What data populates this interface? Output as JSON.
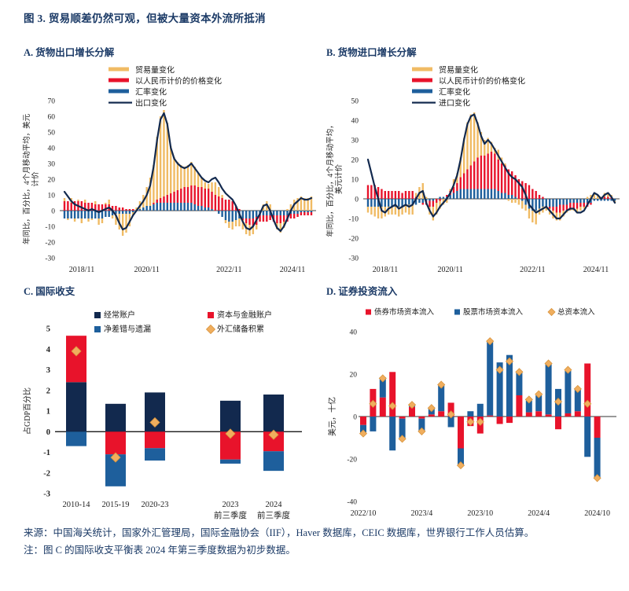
{
  "figure": {
    "title": "图 3. 贸易顺差仍然可观，但被大量资本外流所抵消",
    "source_note": "来源：中国海关统计，国家外汇管理局，国际金融协会（IIF），Haver 数据库，CEIC 数据库，世界银行工作人员估算。",
    "footnote": "注：图 C 的国际收支平衡表 2024 年第三季度数据为初步数据。"
  },
  "colors": {
    "navy": "#12294e",
    "red": "#e8132b",
    "blue": "#1e5f9c",
    "yellow": "#f0bb64",
    "diamond": "#f0ae5e",
    "diamond_edge": "#d8933c",
    "title": "#1b3a66",
    "axis_text": "#222222"
  },
  "chart_data": [
    {
      "id": "A",
      "type": "bar",
      "subtype": "stacked-decomposition-with-line",
      "title": "A. 货物出口增长分解",
      "ylabel_lines": [
        "年同比，百分比，4个月移动平均，美元",
        "计价"
      ],
      "ylim": [
        -30,
        70
      ],
      "ytick_step": 10,
      "x_range": {
        "start": "2018/11",
        "end": "2024/11",
        "months": 73
      },
      "x_ticks": [
        {
          "i": 0,
          "label": "2018/11"
        },
        {
          "i": 24,
          "label": "2020/11"
        },
        {
          "i": 48,
          "label": "2022/11"
        },
        {
          "i": 72,
          "label": "2024/11"
        }
      ],
      "legend": [
        "贸易量变化",
        "以人民币计价的价格变化",
        "汇率变化",
        "出口变化"
      ],
      "series": {
        "volume": [
          2,
          -1,
          3,
          -2,
          1,
          -3,
          2,
          -2,
          -1,
          2,
          -4,
          -3,
          1,
          3,
          -2,
          -7,
          -10,
          -14,
          -12,
          -8,
          -2,
          2,
          5,
          8,
          12,
          18,
          24,
          40,
          52,
          55,
          46,
          30,
          22,
          18,
          15,
          13,
          14,
          15,
          12,
          9,
          6,
          4,
          3,
          6,
          8,
          6,
          2,
          -2,
          -4,
          -5,
          -4,
          -5,
          -6,
          -7,
          -7,
          -5,
          -3,
          0,
          4,
          6,
          4,
          0,
          -4,
          -6,
          -4,
          1,
          4,
          7,
          8,
          9,
          8,
          8,
          9
        ],
        "price_rmb": [
          6,
          6,
          5,
          6,
          6,
          6,
          5,
          5,
          5,
          4,
          4,
          4,
          4,
          4,
          3,
          3,
          2,
          2,
          1,
          1,
          1,
          0,
          0,
          0,
          0,
          0,
          1,
          2,
          3,
          4,
          5,
          6,
          7,
          8,
          9,
          10,
          10,
          11,
          12,
          12,
          12,
          12,
          12,
          11,
          10,
          9,
          8,
          7,
          7,
          6,
          3,
          1,
          -1,
          -3,
          -4,
          -5,
          -5,
          -4,
          -4,
          -4,
          -3,
          -4,
          -5,
          -5,
          -4,
          -4,
          -3,
          -3,
          -2,
          -2,
          -2,
          -2,
          -2
        ],
        "fx": [
          -5,
          -5,
          -5,
          -5,
          -5,
          -5,
          -5,
          -5,
          -5,
          -5,
          -5,
          -5,
          -4,
          -4,
          -3,
          -2,
          -2,
          -2,
          -2,
          -2,
          -1,
          0,
          1,
          2,
          3,
          3,
          4,
          5,
          5,
          5,
          5,
          5,
          5,
          5,
          5,
          5,
          5,
          5,
          4,
          3,
          3,
          2,
          2,
          1,
          0,
          -2,
          -4,
          -6,
          -7,
          -7,
          -6,
          -5,
          -5,
          -5,
          -5,
          -5,
          -4,
          -3,
          -3,
          -3,
          -3,
          -3,
          -3,
          -3,
          -3,
          -3,
          -2,
          -2,
          -2,
          -1,
          -1,
          -1,
          -1
        ],
        "line_total": [
          12,
          9,
          6,
          4,
          3,
          2,
          1,
          0,
          1,
          0,
          -1,
          0,
          1,
          2,
          0,
          -3,
          -8,
          -12,
          -11,
          -7,
          -3,
          0,
          3,
          6,
          10,
          16,
          28,
          45,
          58,
          62,
          55,
          40,
          33,
          30,
          28,
          27,
          28,
          30,
          27,
          24,
          21,
          19,
          18,
          20,
          21,
          18,
          14,
          11,
          9,
          7,
          3,
          -2,
          -7,
          -11,
          -12,
          -10,
          -6,
          -2,
          3,
          4,
          0,
          -6,
          -11,
          -13,
          -10,
          -5,
          0,
          4,
          6,
          8,
          7,
          7,
          8
        ]
      }
    },
    {
      "id": "B",
      "type": "bar",
      "subtype": "stacked-decomposition-with-line",
      "title": "B. 货物进口增长分解",
      "ylabel_lines": [
        "年同比，百分比，4个月移动平均，",
        "美元计价"
      ],
      "ylim": [
        -30,
        50
      ],
      "ytick_step": 10,
      "x_range": {
        "start": "2018/11",
        "end": "2024/11",
        "months": 73
      },
      "x_ticks": [
        {
          "i": 0,
          "label": "2018/11"
        },
        {
          "i": 24,
          "label": "2020/11"
        },
        {
          "i": 48,
          "label": "2022/11"
        },
        {
          "i": 72,
          "label": "2024/11"
        }
      ],
      "legend": [
        "贸易量变化",
        "以人民币计价的价格变化",
        "汇率变化",
        "进口变化"
      ],
      "series": {
        "volume": [
          -3,
          -4,
          -5,
          -6,
          -6,
          -5,
          -4,
          -4,
          -4,
          -5,
          -4,
          -4,
          -5,
          -5,
          2,
          6,
          8,
          1,
          -4,
          -7,
          -6,
          -4,
          -3,
          -2,
          1,
          4,
          5,
          10,
          18,
          24,
          26,
          25,
          18,
          12,
          8,
          8,
          5,
          3,
          5,
          3,
          1,
          -1,
          -2,
          -2,
          -3,
          -4,
          -3,
          -5,
          -6,
          -7,
          -3,
          -3,
          -2,
          -3,
          -4,
          -4,
          -4,
          -3,
          -1,
          -1,
          -1,
          -2,
          -2,
          -1,
          1,
          2,
          3,
          2,
          1,
          2,
          2,
          1,
          -1
        ],
        "price_rmb": [
          7,
          7,
          7,
          6,
          5,
          4,
          4,
          4,
          4,
          4,
          3,
          4,
          4,
          4,
          1,
          0,
          -1,
          -2,
          -3,
          -3,
          -2,
          -1,
          0,
          1,
          2,
          3,
          4,
          6,
          8,
          10,
          12,
          14,
          16,
          17,
          17,
          18,
          19,
          18,
          16,
          15,
          14,
          13,
          12,
          11,
          10,
          9,
          8,
          7,
          5,
          4,
          2,
          1,
          0,
          -1,
          -2,
          -3,
          -4,
          -3,
          -3,
          -3,
          -3,
          -3,
          -2,
          -2,
          -2,
          -1,
          0,
          0,
          0,
          1,
          1,
          1,
          0
        ],
        "fx": [
          -4,
          -4,
          -4,
          -4,
          -4,
          -4,
          -4,
          -4,
          -4,
          -4,
          -4,
          -3,
          -3,
          -3,
          -3,
          -2,
          -2,
          -1,
          -1,
          -1,
          0,
          1,
          1,
          1,
          2,
          3,
          4,
          5,
          5,
          5,
          5,
          5,
          5,
          5,
          5,
          5,
          5,
          5,
          4,
          3,
          3,
          2,
          2,
          1,
          0,
          -1,
          -3,
          -5,
          -6,
          -6,
          -5,
          -4,
          -4,
          -4,
          -4,
          -4,
          -3,
          -3,
          -3,
          -2,
          -2,
          -2,
          -2,
          -2,
          -2,
          -2,
          -1,
          -1,
          -1,
          -1,
          -1,
          -1,
          -1
        ],
        "line_total": [
          20,
          13,
          6,
          0,
          -6,
          -7,
          -5,
          -4,
          -3,
          -5,
          -4,
          -3,
          -4,
          -3,
          0,
          3,
          4,
          -2,
          -6,
          -9,
          -7,
          -4,
          -2,
          0,
          3,
          7,
          12,
          20,
          30,
          38,
          42,
          43,
          38,
          32,
          28,
          30,
          28,
          25,
          22,
          19,
          16,
          13,
          11,
          10,
          8,
          6,
          2,
          -3,
          -5,
          -7,
          -6,
          -5,
          -4,
          -6,
          -8,
          -10,
          -10,
          -8,
          -6,
          -5,
          -5,
          -7,
          -7,
          -6,
          -3,
          0,
          3,
          2,
          0,
          2,
          3,
          1,
          -2
        ]
      }
    },
    {
      "id": "C",
      "type": "bar",
      "subtype": "stacked-bar-with-diamond-markers",
      "title": "C. 国际收支",
      "ylabel": "占GDP百分比",
      "ylim": [
        -3,
        5
      ],
      "ytick_step": 1,
      "categories": [
        {
          "label": "2010-14"
        },
        {
          "label": "2015-19"
        },
        {
          "label": "2020-23"
        },
        {
          "label": "2023",
          "label2": "前三季度"
        },
        {
          "label": "2024",
          "label2": "前三季度"
        }
      ],
      "legend": [
        "经常账户",
        "资本与金融账户",
        "净差错与遗漏",
        "外汇储备积累"
      ],
      "series": {
        "current_account": [
          2.4,
          1.35,
          1.9,
          1.5,
          1.8
        ],
        "capital_financial": [
          2.25,
          -1.1,
          -0.8,
          -1.35,
          -0.95
        ],
        "errors_omissions": [
          -0.7,
          -1.55,
          -0.6,
          -0.2,
          -0.95
        ],
        "fx_reserves_diamond": [
          3.9,
          -1.25,
          0.45,
          -0.1,
          -0.15
        ]
      }
    },
    {
      "id": "D",
      "type": "bar",
      "subtype": "stacked-bar-with-diamond-markers",
      "title": "D. 证券投资流入",
      "ylabel": "美元，十亿",
      "ylim": [
        -40,
        40
      ],
      "ytick_step": 20,
      "months": [
        "2022/10",
        "2022/11",
        "2022/12",
        "2023/1",
        "2023/2",
        "2023/3",
        "2023/4",
        "2023/5",
        "2023/6",
        "2023/7",
        "2023/8",
        "2023/9",
        "2023/10",
        "2023/11",
        "2023/12",
        "2024/1",
        "2024/2",
        "2024/3",
        "2024/4",
        "2024/5",
        "2024/6",
        "2024/7",
        "2024/8",
        "2024/9",
        "2024/10"
      ],
      "x_tick_indices": [
        0,
        6,
        12,
        18,
        24
      ],
      "legend": [
        "债券市场资本流入",
        "股票市场资本流入",
        "总资本流入"
      ],
      "series": {
        "bond": [
          -4,
          13,
          9,
          21,
          -1,
          4.5,
          -1,
          1,
          2.5,
          6.5,
          -15,
          -4.5,
          -8,
          0.5,
          -3.5,
          -3,
          10,
          2,
          2.5,
          1,
          -6,
          1.5,
          2.5,
          25,
          -10
        ],
        "equity": [
          -3.5,
          -7,
          9.5,
          -16,
          -9.5,
          1,
          -6,
          3,
          12.5,
          -5,
          -8,
          2.5,
          6,
          35,
          25.5,
          29,
          11,
          5.5,
          7.5,
          24,
          13,
          20,
          10.5,
          -19,
          -19
        ],
        "total_diamond": [
          -8,
          6,
          18,
          5,
          -10.5,
          5.5,
          -7,
          4,
          15,
          1,
          -23,
          -2.5,
          -2.5,
          35.5,
          22,
          26,
          21,
          8,
          10.5,
          25,
          7,
          22,
          13,
          6,
          -29
        ]
      }
    }
  ]
}
